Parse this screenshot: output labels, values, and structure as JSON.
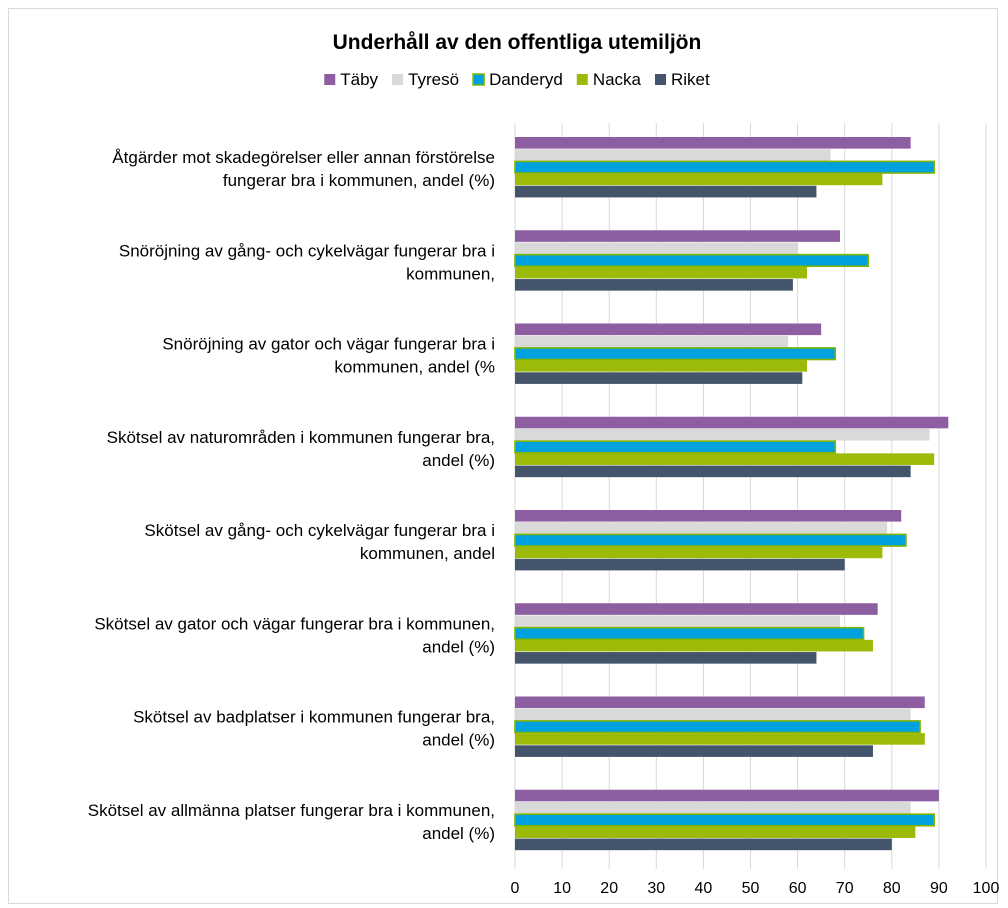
{
  "chart_data": {
    "type": "bar",
    "orientation": "horizontal",
    "title": "Underhåll av den offentliga utemiljön",
    "legend_position": "top",
    "grid": true,
    "xlim": [
      0,
      100
    ],
    "x_ticks": [
      0,
      10,
      20,
      30,
      40,
      50,
      60,
      70,
      80,
      90,
      100
    ],
    "categories": [
      [
        "Åtgärder mot skadegörelser eller annan förstörelse",
        "fungerar bra i kommunen, andel (%)"
      ],
      [
        "Snöröjning av gång- och cykelvägar fungerar bra i",
        "kommunen,"
      ],
      [
        "Snöröjning av gator och vägar fungerar bra i",
        "kommunen, andel (%"
      ],
      [
        "Skötsel av naturområden i kommunen fungerar bra,",
        "andel (%)"
      ],
      [
        "Skötsel av gång- och cykelvägar fungerar bra i",
        "kommunen, andel"
      ],
      [
        "Skötsel av gator och vägar fungerar bra i kommunen,",
        "andel (%)"
      ],
      [
        "Skötsel av badplatser i kommunen fungerar bra,",
        "andel (%)"
      ],
      [
        "Skötsel av allmänna platser fungerar bra i kommunen,",
        "andel (%)"
      ]
    ],
    "series": [
      {
        "name": "Täby",
        "color": "#8e5ea2",
        "values": [
          84,
          69,
          65,
          92,
          82,
          77,
          87,
          90
        ]
      },
      {
        "name": "Tyresö",
        "color": "#d9d9d9",
        "values": [
          67,
          60,
          58,
          88,
          79,
          69,
          84,
          84
        ]
      },
      {
        "name": "Danderyd",
        "color": "#00a1df",
        "border": "#7fb500",
        "values": [
          89,
          75,
          68,
          68,
          83,
          74,
          86,
          89
        ]
      },
      {
        "name": "Nacka",
        "color": "#9bbb08",
        "values": [
          78,
          62,
          62,
          89,
          78,
          76,
          87,
          85
        ]
      },
      {
        "name": "Riket",
        "color": "#44546a",
        "values": [
          64,
          59,
          61,
          84,
          70,
          64,
          76,
          80
        ]
      }
    ]
  }
}
